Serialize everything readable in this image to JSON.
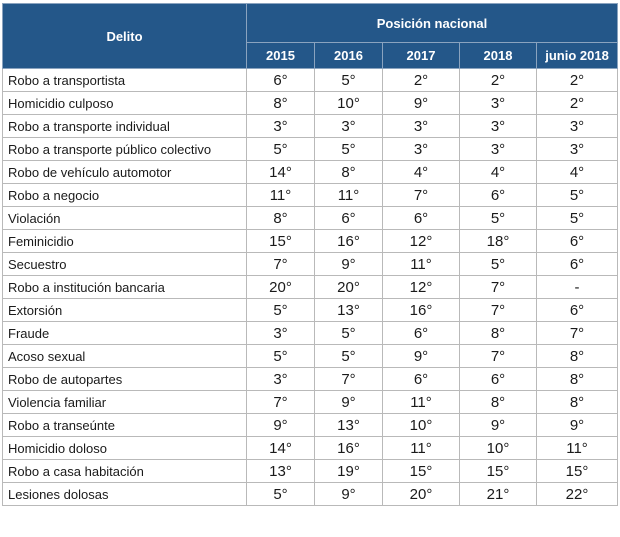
{
  "header": {
    "delito_label": "Delito",
    "group_label": "Posición nacional",
    "years": [
      "2015",
      "2016",
      "2017",
      "2018",
      "junio 2018"
    ]
  },
  "rows": [
    {
      "name": "Robo a transportista",
      "values": [
        "6°",
        "5°",
        "2°",
        "2°",
        "2°"
      ]
    },
    {
      "name": "Homicidio culposo",
      "values": [
        "8°",
        "10°",
        "9°",
        "3°",
        "2°"
      ]
    },
    {
      "name": "Robo a transporte individual",
      "values": [
        "3°",
        "3°",
        "3°",
        "3°",
        "3°"
      ]
    },
    {
      "name": "Robo a transporte público colectivo",
      "values": [
        "5°",
        "5°",
        "3°",
        "3°",
        "3°"
      ]
    },
    {
      "name": "Robo de vehículo automotor",
      "values": [
        "14°",
        "8°",
        "4°",
        "4°",
        "4°"
      ]
    },
    {
      "name": "Robo a negocio",
      "values": [
        "11°",
        "11°",
        "7°",
        "6°",
        "5°"
      ]
    },
    {
      "name": "Violación",
      "values": [
        "8°",
        "6°",
        "6°",
        "5°",
        "5°"
      ]
    },
    {
      "name": "Feminicidio",
      "values": [
        "15°",
        "16°",
        "12°",
        "18°",
        "6°"
      ]
    },
    {
      "name": "Secuestro",
      "values": [
        "7°",
        "9°",
        "11°",
        "5°",
        "6°"
      ]
    },
    {
      "name": "Robo a institución bancaria",
      "values": [
        "20°",
        "20°",
        "12°",
        "7°",
        "-"
      ]
    },
    {
      "name": "Extorsión",
      "values": [
        "5°",
        "13°",
        "16°",
        "7°",
        "6°"
      ]
    },
    {
      "name": "Fraude",
      "values": [
        "3°",
        "5°",
        "6°",
        "8°",
        "7°"
      ]
    },
    {
      "name": "Acoso sexual",
      "values": [
        "5°",
        "5°",
        "9°",
        "7°",
        "8°"
      ]
    },
    {
      "name": "Robo de autopartes",
      "values": [
        "3°",
        "7°",
        "6°",
        "6°",
        "8°"
      ]
    },
    {
      "name": "Violencia familiar",
      "values": [
        "7°",
        "9°",
        "11°",
        "8°",
        "8°"
      ]
    },
    {
      "name": "Robo a transeúnte",
      "values": [
        "9°",
        "13°",
        "10°",
        "9°",
        "9°"
      ]
    },
    {
      "name": "Homicidio doloso",
      "values": [
        "14°",
        "16°",
        "11°",
        "10°",
        "11°"
      ]
    },
    {
      "name": "Robo a casa habitación",
      "values": [
        "13°",
        "19°",
        "15°",
        "15°",
        "15°"
      ]
    },
    {
      "name": "Lesiones dolosas",
      "values": [
        "5°",
        "9°",
        "20°",
        "21°",
        "22°"
      ]
    }
  ]
}
